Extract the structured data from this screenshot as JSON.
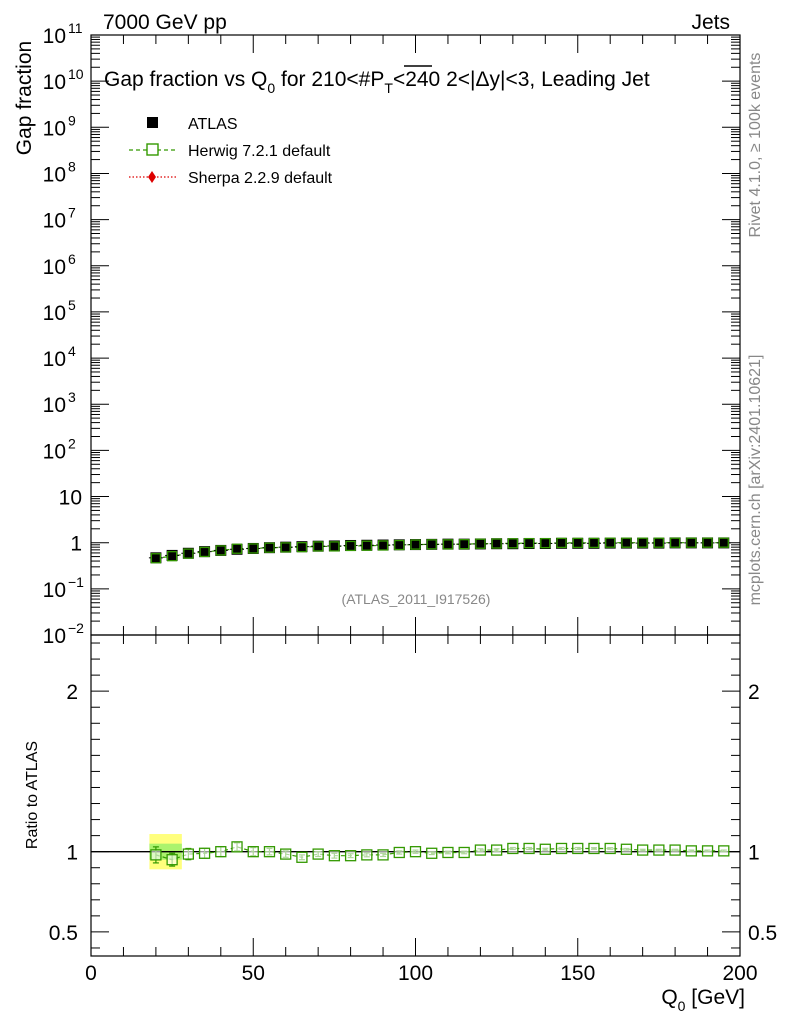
{
  "header": {
    "left": "7000 GeV pp",
    "right": "Jets"
  },
  "side_labels": {
    "rivet": "Rivet 4.1.0, ≥ 100k events",
    "mcplots": "mcplots.cern.ch [arXiv:2401.10621]"
  },
  "chart_data": [
    {
      "type": "scatter",
      "panel": "main",
      "title": "Gap fraction vs Q₀ for 210<#P̅ₜ<240  2<|Δy|<3, Leading Jet",
      "title_parts": {
        "a": "Gap fraction vs Q",
        "a_sub": "0",
        "b": " for 210<#",
        "b_over": "P",
        "b_sub": "T",
        "c": "<240  2<|Δy|<3, Leading Jet"
      },
      "ylabel": "Gap fraction",
      "yscale": "log",
      "ylim": [
        0.01,
        100000000000.0
      ],
      "xlim": [
        0,
        200
      ],
      "ytick_labels": [
        {
          "exp": -2,
          "base": "10",
          "sup": "−2"
        },
        {
          "exp": -1,
          "base": "10",
          "sup": "−1"
        },
        {
          "exp": 0,
          "base": "1",
          "sup": ""
        },
        {
          "exp": 1,
          "base": "10",
          "sup": ""
        },
        {
          "exp": 2,
          "base": "10",
          "sup": "2"
        },
        {
          "exp": 3,
          "base": "10",
          "sup": "3"
        },
        {
          "exp": 4,
          "base": "10",
          "sup": "4"
        },
        {
          "exp": 5,
          "base": "10",
          "sup": "5"
        },
        {
          "exp": 6,
          "base": "10",
          "sup": "6"
        },
        {
          "exp": 7,
          "base": "10",
          "sup": "7"
        },
        {
          "exp": 8,
          "base": "10",
          "sup": "8"
        },
        {
          "exp": 9,
          "base": "10",
          "sup": "9"
        },
        {
          "exp": 10,
          "base": "10",
          "sup": "10"
        },
        {
          "exp": 11,
          "base": "10",
          "sup": "11"
        }
      ],
      "x": [
        20,
        25,
        30,
        35,
        40,
        45,
        50,
        55,
        60,
        65,
        70,
        75,
        80,
        85,
        90,
        95,
        100,
        105,
        110,
        115,
        120,
        125,
        130,
        135,
        140,
        145,
        150,
        155,
        160,
        165,
        170,
        175,
        180,
        185,
        190,
        195
      ],
      "series": [
        {
          "name": "ATLAS",
          "color": "#000000",
          "marker": "filled-square",
          "values": [
            0.47,
            0.53,
            0.59,
            0.64,
            0.68,
            0.72,
            0.75,
            0.78,
            0.8,
            0.82,
            0.84,
            0.85,
            0.87,
            0.88,
            0.89,
            0.9,
            0.91,
            0.92,
            0.93,
            0.93,
            0.94,
            0.95,
            0.95,
            0.96,
            0.96,
            0.97,
            0.97,
            0.97,
            0.98,
            0.98,
            0.98,
            0.98,
            0.99,
            0.99,
            0.99,
            0.99
          ]
        },
        {
          "name": "Herwig 7.2.1 default",
          "color": "#339900",
          "marker": "open-square",
          "values": [
            0.46,
            0.51,
            0.58,
            0.63,
            0.68,
            0.74,
            0.75,
            0.78,
            0.79,
            0.8,
            0.83,
            0.83,
            0.85,
            0.86,
            0.87,
            0.89,
            0.91,
            0.92,
            0.92,
            0.93,
            0.95,
            0.96,
            0.97,
            0.98,
            0.98,
            0.99,
            0.99,
            0.99,
            1.0,
            1.0,
            1.0,
            1.0,
            1.0,
            1.0,
            1.0,
            1.0
          ]
        },
        {
          "name": "Sherpa 2.2.9 default",
          "color": "#dd0000",
          "marker": "filled-diamond",
          "values": []
        }
      ],
      "annotation": "(ATLAS_2011_I917526)"
    },
    {
      "type": "scatter",
      "panel": "ratio",
      "ylabel": "Ratio to ATLAS",
      "xlabel": "Q₀ [GeV]",
      "xlabel_parts": {
        "a": "Q",
        "sub": "0",
        "b": " [GeV]"
      },
      "xlim": [
        0,
        200
      ],
      "ylim": [
        0.35,
        2.35
      ],
      "xtick_labels": [
        "0",
        "50",
        "100",
        "150",
        "200"
      ],
      "ytick_labels": [
        "0.5",
        "1",
        "2"
      ],
      "ytick_values": [
        0.5,
        1,
        2
      ],
      "reference_line": 1.0,
      "band": {
        "x": [
          18,
          28
        ],
        "green": [
          0.95,
          1.05
        ],
        "yellow": [
          0.89,
          1.11
        ]
      },
      "x": [
        20,
        25,
        30,
        35,
        40,
        45,
        50,
        55,
        60,
        65,
        70,
        75,
        80,
        85,
        90,
        95,
        100,
        105,
        110,
        115,
        120,
        125,
        130,
        135,
        140,
        145,
        150,
        155,
        160,
        165,
        170,
        175,
        180,
        185,
        190,
        195
      ],
      "series": [
        {
          "name": "Herwig 7.2.1 default",
          "color": "#339900",
          "values": [
            0.98,
            0.95,
            0.985,
            0.99,
            1.0,
            1.03,
            1.0,
            1.0,
            0.985,
            0.965,
            0.985,
            0.975,
            0.975,
            0.98,
            0.98,
            0.995,
            1.0,
            0.99,
            0.995,
            0.995,
            1.01,
            1.01,
            1.02,
            1.02,
            1.015,
            1.02,
            1.02,
            1.02,
            1.02,
            1.015,
            1.01,
            1.01,
            1.01,
            1.005,
            1.005,
            1.005
          ],
          "errors": [
            0.05,
            0.04,
            0.035,
            0.03,
            0.03,
            0.025,
            0.025,
            0.02,
            0.02,
            0.015,
            0.015,
            0.015,
            0.012,
            0.012,
            0.01,
            0.01,
            0.01,
            0.008,
            0.008,
            0.008,
            0.008,
            0.008,
            0.006,
            0.006,
            0.006,
            0.006,
            0.006,
            0.005,
            0.005,
            0.005,
            0.005,
            0.005,
            0.005,
            0.005,
            0.005,
            0.005
          ]
        }
      ]
    }
  ]
}
